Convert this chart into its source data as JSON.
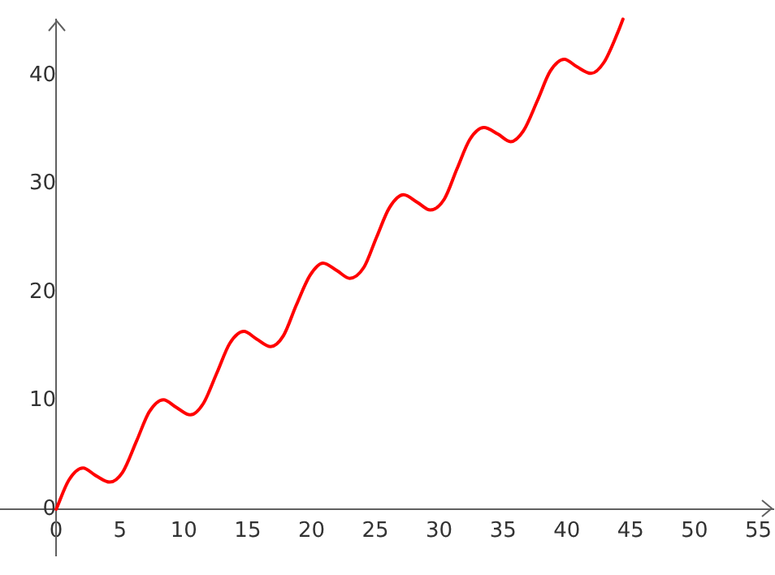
{
  "chart_data": {
    "type": "line",
    "x": [
      0,
      1,
      2.1,
      3.1,
      4.2,
      5.2,
      6.3,
      7.3,
      8.4,
      9.4,
      10.5,
      11.5,
      12.6,
      13.6,
      14.7,
      15.7,
      16.8,
      17.8,
      18.8,
      19.9,
      20.9,
      22,
      23,
      24.1,
      25.1,
      26.1,
      27.2,
      28.3,
      29.3,
      30.4,
      31.4,
      32.4,
      33.5,
      34.6,
      35.6,
      36.6,
      37.7,
      38.7,
      39.8,
      40.8,
      41.9,
      42.9,
      44,
      44.4
    ],
    "series": [
      {
        "color": "#ff0000",
        "values": [
          0,
          2.7,
          3.8,
          3.1,
          2.5,
          3.4,
          6.3,
          9,
          10.1,
          9.4,
          8.7,
          9.7,
          12.6,
          15.3,
          16.4,
          15.7,
          15,
          16,
          18.8,
          21.6,
          22.7,
          22,
          21.3,
          22.3,
          25.1,
          27.8,
          29,
          28.3,
          27.6,
          28.6,
          31.4,
          34.1,
          35.2,
          34.6,
          33.9,
          34.9,
          37.7,
          40.4,
          41.5,
          40.8,
          40.2,
          41.2,
          44,
          45.2
        ]
      }
    ],
    "xlim": [
      -4.4,
      56.2
    ],
    "ylim": [
      -4.3,
      45.2
    ],
    "xticks": [
      0,
      5,
      10,
      15,
      20,
      25,
      30,
      35,
      40,
      45,
      50,
      55
    ],
    "yticks": [
      0,
      10,
      20,
      30,
      40
    ],
    "grid": false,
    "legend": false,
    "marker": "none",
    "line_style": "solid"
  }
}
